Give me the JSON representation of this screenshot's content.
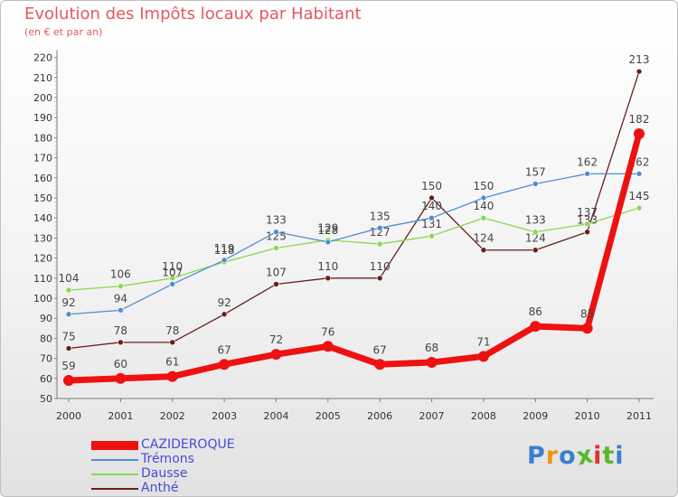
{
  "header": {
    "title": "Evolution des Impôts locaux par Habitant",
    "subtitle": "(en € et par an)"
  },
  "chart_data": {
    "type": "line",
    "title": "Evolution des Impôts locaux par Habitant",
    "subtitle": "(en € et par an)",
    "xlabel": "",
    "ylabel": "",
    "x": [
      "2000",
      "2001",
      "2002",
      "2003",
      "2004",
      "2005",
      "2006",
      "2007",
      "2008",
      "2009",
      "2010",
      "2011"
    ],
    "ylim": [
      50,
      220
    ],
    "yticks": [
      50,
      60,
      70,
      80,
      90,
      100,
      110,
      120,
      130,
      140,
      150,
      160,
      170,
      180,
      190,
      200,
      210,
      220
    ],
    "grid": false,
    "legend_position": "bottom-left",
    "series": [
      {
        "name": "Anthé",
        "color": "#6b1d1d",
        "values": [
          75,
          78,
          78,
          92,
          107,
          110,
          110,
          150,
          124,
          124,
          133,
          213
        ]
      },
      {
        "name": "Dausse",
        "color": "#88d850",
        "values": [
          104,
          106,
          110,
          118,
          125,
          129,
          127,
          131,
          140,
          133,
          137,
          145
        ]
      },
      {
        "name": "Trémons",
        "color": "#4e8ed3",
        "values": [
          92,
          94,
          107,
          119,
          133,
          128,
          135,
          140,
          150,
          157,
          162,
          162
        ]
      },
      {
        "name": "CAZIDEROQUE",
        "color": "#ee1111",
        "values": [
          59,
          60,
          61,
          67,
          72,
          76,
          67,
          68,
          71,
          86,
          85,
          182
        ]
      }
    ]
  },
  "legend": {
    "items": [
      {
        "label": "CAZIDEROQUE",
        "color": "#ee1111",
        "text_color": "#4a4ad8"
      },
      {
        "label": "Trémons",
        "color": "#4e8ed3",
        "text_color": "#4a4ad8"
      },
      {
        "label": "Dausse",
        "color": "#88d850",
        "text_color": "#4a4ad8"
      },
      {
        "label": "Anthé",
        "color": "#6b1d1d",
        "text_color": "#4a4ad8"
      }
    ]
  },
  "logo": {
    "text": "Proxiti",
    "colors": [
      "#3a7fd0",
      "#f29418",
      "#3a7fd0",
      "#5bb62e",
      "#e33232",
      "#5bb62e",
      "#3a7fd0"
    ]
  }
}
